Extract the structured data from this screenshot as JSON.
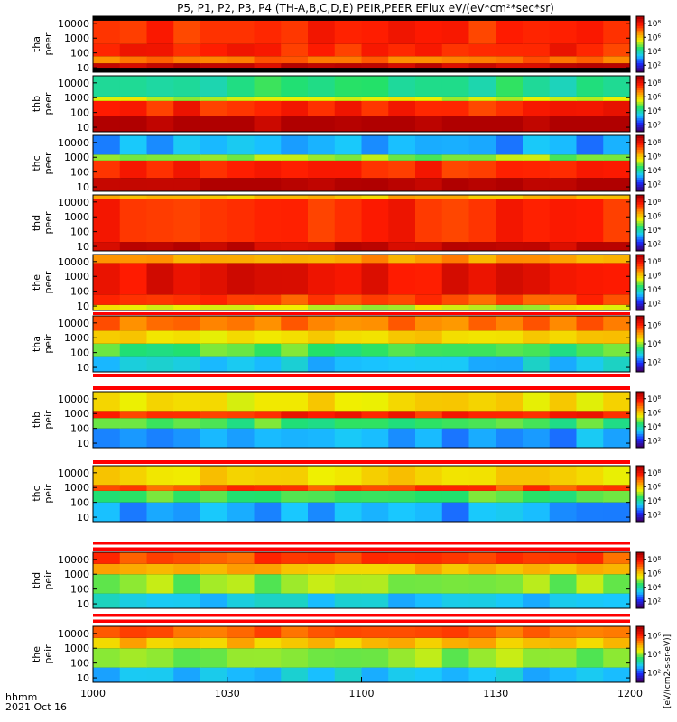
{
  "title": "P5, P1, P2, P3, P4 (TH-A,B,C,D,E) PEIR,PEER EFlux eV/(eV*cm²*sec*sr)",
  "time_axis": {
    "label_hhmm": "hhmm",
    "date": "2021 Oct 16",
    "ticks": [
      {
        "minute": 0,
        "label": "1000"
      },
      {
        "minute": 30,
        "label": "1030"
      },
      {
        "minute": 60,
        "label": "1100"
      },
      {
        "minute": 90,
        "label": "1130"
      },
      {
        "minute": 120,
        "label": "1200"
      }
    ],
    "range_minutes": [
      0,
      120
    ]
  },
  "colorbar_label": "[eV/(cm2-s-sr-eV)]",
  "colors": {
    "colormap": [
      "#3c0070",
      "#1a2cff",
      "#19c8ff",
      "#21e16a",
      "#f0f000",
      "#ff9000",
      "#ff1a00",
      "#b00000"
    ],
    "flag_red": "#ff0000",
    "flag_white": "#ffffff"
  },
  "chart_data": {
    "type": "heatmap",
    "description_units": "energy (eV) vs time; color = log10 energy flux",
    "y_scale": "log",
    "ylim": [
      5,
      30000
    ],
    "y_ticks": [
      {
        "value": 10,
        "label": "10"
      },
      {
        "value": 100,
        "label": "100"
      },
      {
        "value": 1000,
        "label": "1000"
      },
      {
        "value": 10000,
        "label": "10000"
      }
    ],
    "panels": [
      {
        "id": "tha-peer",
        "probe": "tha",
        "species": "peer",
        "colorbar_ticks": [
          "10²",
          "10⁴",
          "10⁶",
          "10⁸"
        ],
        "crange": [
          1,
          9
        ],
        "bands": [
          [
            10,
            20,
            0.95
          ],
          [
            20,
            60,
            0.75
          ],
          [
            60,
            400,
            0.85
          ],
          [
            400,
            15000,
            0.85
          ]
        ]
      },
      {
        "id": "thb-peer",
        "probe": "thb",
        "species": "peer",
        "colorbar_ticks": [
          "10²",
          "10⁴",
          "10⁶",
          "10⁸"
        ],
        "crange": [
          1,
          9
        ],
        "bands": [
          [
            5,
            60,
            1.0
          ],
          [
            60,
            600,
            0.85
          ],
          [
            600,
            1200,
            0.55
          ],
          [
            1200,
            30000,
            0.4
          ]
        ]
      },
      {
        "id": "thc-peer",
        "probe": "thc",
        "species": "peer",
        "colorbar_ticks": [
          "10²",
          "10⁴",
          "10⁶",
          "10⁸"
        ],
        "crange": [
          1,
          9
        ],
        "bands": [
          [
            5,
            40,
            1.0
          ],
          [
            40,
            600,
            0.85
          ],
          [
            600,
            1500,
            0.5
          ],
          [
            1500,
            30000,
            0.25
          ]
        ]
      },
      {
        "id": "thd-peer",
        "probe": "thd",
        "species": "peer",
        "colorbar_ticks": [
          "10²",
          "10⁴",
          "10⁶",
          "10⁸"
        ],
        "crange": [
          1,
          9
        ],
        "bands": [
          [
            5,
            20,
            0.95
          ],
          [
            20,
            15000,
            0.85
          ],
          [
            15000,
            30000,
            0.65
          ]
        ]
      },
      {
        "id": "the-peer",
        "probe": "the",
        "species": "peer",
        "colorbar_ticks": [
          "10²",
          "10⁴",
          "10⁶",
          "10⁸"
        ],
        "crange": [
          1,
          9
        ],
        "bands": [
          [
            5,
            12,
            0.55
          ],
          [
            12,
            60,
            0.8
          ],
          [
            60,
            8000,
            0.9
          ],
          [
            8000,
            30000,
            0.7
          ]
        ]
      },
      {
        "id": "tha-peir",
        "probe": "tha",
        "species": "peir",
        "colorbar_ticks": [
          "10²",
          "10⁴",
          "10⁶"
        ],
        "crange": [
          1,
          7
        ],
        "bands": [
          [
            5,
            50,
            0.3
          ],
          [
            50,
            400,
            0.45
          ],
          [
            400,
            3000,
            0.6
          ],
          [
            3000,
            30000,
            0.75
          ]
        ]
      },
      {
        "id": "thb-peir",
        "probe": "thb",
        "species": "peir",
        "colorbar_ticks": [
          "10²",
          "10⁴",
          "10⁶",
          "10⁸"
        ],
        "crange": [
          1,
          9
        ],
        "bands": [
          [
            5,
            100,
            0.25
          ],
          [
            100,
            500,
            0.45
          ],
          [
            500,
            1500,
            0.85
          ],
          [
            1500,
            30000,
            0.6
          ]
        ]
      },
      {
        "id": "thc-peir",
        "probe": "thc",
        "species": "peir",
        "colorbar_ticks": [
          "10²",
          "10⁴",
          "10⁶",
          "10⁸"
        ],
        "crange": [
          1,
          9
        ],
        "bands": [
          [
            5,
            100,
            0.25
          ],
          [
            100,
            600,
            0.45
          ],
          [
            600,
            1500,
            0.8
          ],
          [
            1500,
            30000,
            0.6
          ]
        ]
      },
      {
        "id": "thd-peir",
        "probe": "thd",
        "species": "peir",
        "colorbar_ticks": [
          "10²",
          "10⁴",
          "10⁶",
          "10⁸"
        ],
        "crange": [
          1,
          9
        ],
        "bands": [
          [
            5,
            50,
            0.3
          ],
          [
            50,
            1000,
            0.5
          ],
          [
            1000,
            5000,
            0.65
          ],
          [
            5000,
            30000,
            0.8
          ]
        ]
      },
      {
        "id": "the-peir",
        "probe": "the",
        "species": "peir",
        "colorbar_ticks": [
          "10²",
          "10⁴",
          "10⁶"
        ],
        "crange": [
          1,
          7
        ],
        "bands": [
          [
            5,
            50,
            0.3
          ],
          [
            50,
            1000,
            0.5
          ],
          [
            1000,
            5000,
            0.65
          ],
          [
            5000,
            30000,
            0.78
          ]
        ]
      }
    ]
  }
}
